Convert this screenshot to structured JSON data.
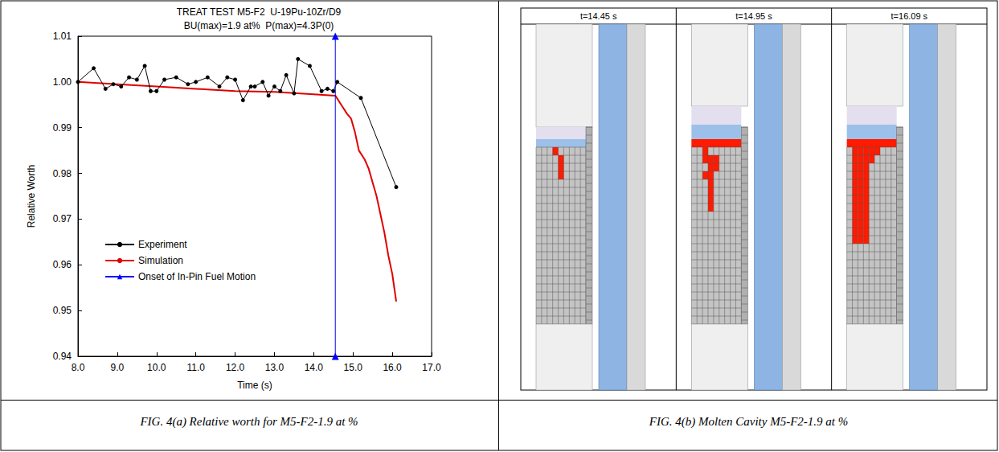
{
  "chart_data": {
    "type": "line",
    "title": "TREAT TEST M5-F2  U-19Pu-10Zr/D9",
    "subtitle": "BU(max)=1.9 at%  P(max)=4.3P(0)",
    "x_label": "Time (s)",
    "y_label": "Relative Worth",
    "xlim": [
      8,
      17
    ],
    "xticks": [
      {
        "value": 8,
        "label": "8.0"
      },
      {
        "value": 9,
        "label": "9.0"
      },
      {
        "value": 10,
        "label": "10.0"
      },
      {
        "value": 11,
        "label": "11.0"
      },
      {
        "value": 12,
        "label": "12.0"
      },
      {
        "value": 13,
        "label": "13.0"
      },
      {
        "value": 14,
        "label": "14.0"
      },
      {
        "value": 15,
        "label": "15.0"
      },
      {
        "value": 16,
        "label": "16.0"
      },
      {
        "value": 17,
        "label": "17.0"
      }
    ],
    "ylim": [
      0.94,
      1.01
    ],
    "yticks": [
      0.94,
      0.95,
      0.96,
      0.97,
      0.98,
      0.99,
      {
        "value": 1,
        "label": "1.00"
      },
      1.01
    ],
    "grid": false,
    "legend": "lower left",
    "series": [
      {
        "name": "Experiment",
        "color": "#000000",
        "marker": "circle",
        "line_style": "solid",
        "x": [
          8.0,
          8.4,
          8.7,
          8.9,
          9.1,
          9.3,
          9.5,
          9.7,
          9.85,
          10.0,
          10.2,
          10.5,
          10.8,
          11.0,
          11.3,
          11.6,
          11.8,
          12.0,
          12.2,
          12.4,
          12.5,
          12.7,
          12.85,
          13.0,
          13.15,
          13.3,
          13.5,
          13.6,
          13.9,
          14.2,
          14.35,
          14.5,
          14.6,
          15.2,
          16.1
        ],
        "values": [
          1.0,
          1.003,
          0.9985,
          0.9995,
          0.999,
          1.001,
          1.0005,
          1.0035,
          0.998,
          0.998,
          1.0005,
          1.001,
          0.9995,
          1.0,
          1.001,
          0.999,
          1.001,
          1.0005,
          0.996,
          0.999,
          0.999,
          1.0,
          0.997,
          0.999,
          0.998,
          1.0015,
          0.9975,
          1.005,
          1.0035,
          0.998,
          0.9985,
          0.998,
          1.0,
          0.9965,
          0.977
        ]
      },
      {
        "name": "Simulation",
        "color": "#e00000",
        "marker": "none",
        "line_style": "solid",
        "x": [
          8.0,
          9.0,
          10.0,
          11.0,
          12.0,
          13.0,
          14.0,
          14.55,
          14.7,
          14.85,
          14.95,
          15.05,
          15.15,
          15.3,
          15.4,
          15.5,
          15.6,
          15.7,
          15.8,
          15.9,
          16.0,
          16.1
        ],
        "values": [
          1.0,
          0.9995,
          0.999,
          0.9985,
          0.998,
          0.9978,
          0.9973,
          0.997,
          0.995,
          0.993,
          0.992,
          0.989,
          0.985,
          0.983,
          0.981,
          0.978,
          0.975,
          0.971,
          0.967,
          0.962,
          0.958,
          0.952
        ]
      },
      {
        "name": "Onset of In-Pin Fuel Motion",
        "color": "#0000ff",
        "marker": "triangle",
        "line_style": "solid",
        "x": [
          14.55,
          14.55
        ],
        "values": [
          0.94,
          1.01
        ]
      }
    ]
  },
  "molten_cavity": {
    "panels": [
      {
        "title": "t=14.45 s",
        "molten_layer": false,
        "molten_cells": [
          [
            0,
            3
          ],
          [
            1,
            4
          ],
          [
            2,
            4
          ],
          [
            3,
            4
          ]
        ]
      },
      {
        "title": "t=14.95 s",
        "molten_layer": true,
        "molten_cells": [
          [
            0,
            2
          ],
          [
            1,
            2
          ],
          [
            1,
            3
          ],
          [
            1,
            4
          ],
          [
            2,
            3
          ],
          [
            2,
            4
          ],
          [
            3,
            2
          ],
          [
            3,
            3
          ],
          [
            4,
            3
          ],
          [
            5,
            3
          ],
          [
            6,
            3
          ],
          [
            7,
            3
          ]
        ]
      },
      {
        "title": "t=16.09 s",
        "molten_layer": true,
        "molten_cells": [
          [
            0,
            1
          ],
          [
            0,
            2
          ],
          [
            0,
            3
          ],
          [
            0,
            4
          ],
          [
            0,
            5
          ],
          [
            1,
            1
          ],
          [
            1,
            2
          ],
          [
            1,
            3
          ],
          [
            1,
            4
          ],
          [
            2,
            1
          ],
          [
            2,
            2
          ],
          [
            2,
            3
          ],
          [
            3,
            1
          ],
          [
            3,
            2
          ],
          [
            3,
            3
          ],
          [
            4,
            1
          ],
          [
            4,
            2
          ],
          [
            4,
            3
          ],
          [
            5,
            1
          ],
          [
            5,
            2
          ],
          [
            5,
            3
          ],
          [
            6,
            1
          ],
          [
            6,
            2
          ],
          [
            6,
            3
          ],
          [
            7,
            1
          ],
          [
            7,
            2
          ],
          [
            7,
            3
          ],
          [
            8,
            1
          ],
          [
            8,
            2
          ],
          [
            8,
            3
          ],
          [
            9,
            1
          ],
          [
            9,
            2
          ],
          [
            9,
            3
          ],
          [
            10,
            1
          ],
          [
            10,
            2
          ],
          [
            10,
            3
          ],
          [
            11,
            1
          ],
          [
            11,
            2
          ],
          [
            11,
            3
          ]
        ]
      }
    ]
  },
  "captions": [
    "FIG. 4(a) Relative worth for M5-F2-1.9 at %",
    "FIG. 4(b) Molten Cavity M5-F2-1.9 at %"
  ]
}
